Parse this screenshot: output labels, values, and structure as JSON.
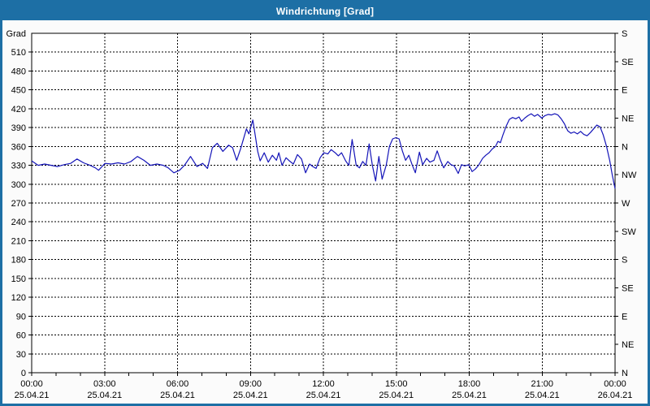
{
  "window": {
    "title": "Windrichtung [Grad]"
  },
  "colors": {
    "window_border": "#1d6fa5",
    "titlebar_bg": "#1d6fa5",
    "title_text": "#ffffff",
    "plot_bg": "#ffffff",
    "grid": "#000000",
    "line": "#1414b8"
  },
  "chart_data": {
    "type": "line",
    "title": "Windrichtung [Grad]",
    "y_left_unit": "Grad",
    "ylim": [
      0,
      540
    ],
    "y_left_tick_step": 30,
    "y_left_ticks": [
      0,
      30,
      60,
      90,
      120,
      150,
      180,
      210,
      240,
      270,
      300,
      330,
      360,
      390,
      420,
      450,
      480,
      510
    ],
    "y_right_ticks": [
      {
        "value": 0,
        "label": "N"
      },
      {
        "value": 45,
        "label": "NE"
      },
      {
        "value": 90,
        "label": "E"
      },
      {
        "value": 135,
        "label": "SE"
      },
      {
        "value": 180,
        "label": "S"
      },
      {
        "value": 225,
        "label": "SW"
      },
      {
        "value": 270,
        "label": "W"
      },
      {
        "value": 315,
        "label": "NW"
      },
      {
        "value": 360,
        "label": "N"
      },
      {
        "value": 405,
        "label": "NE"
      },
      {
        "value": 450,
        "label": "E"
      },
      {
        "value": 495,
        "label": "SE"
      },
      {
        "value": 540,
        "label": "S"
      }
    ],
    "xlim_minutes": [
      0,
      1440
    ],
    "x_major_step_minutes": 180,
    "x_minor_step_minutes": 60,
    "x_ticks": [
      {
        "minute": 0,
        "time": "00:00",
        "date": "25.04.21"
      },
      {
        "minute": 180,
        "time": "03:00",
        "date": "25.04.21"
      },
      {
        "minute": 360,
        "time": "06:00",
        "date": "25.04.21"
      },
      {
        "minute": 540,
        "time": "09:00",
        "date": "25.04.21"
      },
      {
        "minute": 720,
        "time": "12:00",
        "date": "25.04.21"
      },
      {
        "minute": 900,
        "time": "15:00",
        "date": "25.04.21"
      },
      {
        "minute": 1080,
        "time": "18:00",
        "date": "25.04.21"
      },
      {
        "minute": 1260,
        "time": "21:00",
        "date": "25.04.21"
      },
      {
        "minute": 1440,
        "time": "00:00",
        "date": "26.04.21"
      }
    ],
    "grid": true,
    "legend": "none",
    "series": [
      {
        "name": "Windrichtung",
        "color": "#1414b8",
        "points": [
          [
            0,
            337
          ],
          [
            16,
            330
          ],
          [
            32,
            332
          ],
          [
            48,
            330
          ],
          [
            64,
            328
          ],
          [
            80,
            331
          ],
          [
            96,
            333
          ],
          [
            112,
            340
          ],
          [
            128,
            334
          ],
          [
            144,
            330
          ],
          [
            157,
            326
          ],
          [
            165,
            322
          ],
          [
            181,
            333
          ],
          [
            197,
            332
          ],
          [
            213,
            334
          ],
          [
            229,
            332
          ],
          [
            245,
            336
          ],
          [
            261,
            344
          ],
          [
            277,
            338
          ],
          [
            293,
            330
          ],
          [
            309,
            332
          ],
          [
            325,
            330
          ],
          [
            337,
            326
          ],
          [
            351,
            318
          ],
          [
            365,
            322
          ],
          [
            377,
            330
          ],
          [
            392,
            344
          ],
          [
            408,
            328
          ],
          [
            422,
            333
          ],
          [
            434,
            325
          ],
          [
            446,
            358
          ],
          [
            458,
            365
          ],
          [
            472,
            352
          ],
          [
            486,
            362
          ],
          [
            496,
            358
          ],
          [
            506,
            338
          ],
          [
            516,
            357
          ],
          [
            530,
            388
          ],
          [
            536,
            380
          ],
          [
            546,
            402
          ],
          [
            558,
            352
          ],
          [
            564,
            337
          ],
          [
            574,
            350
          ],
          [
            584,
            335
          ],
          [
            594,
            346
          ],
          [
            604,
            338
          ],
          [
            610,
            350
          ],
          [
            618,
            330
          ],
          [
            628,
            342
          ],
          [
            636,
            337
          ],
          [
            646,
            332
          ],
          [
            656,
            347
          ],
          [
            666,
            340
          ],
          [
            676,
            318
          ],
          [
            686,
            332
          ],
          [
            694,
            328
          ],
          [
            702,
            325
          ],
          [
            712,
            342
          ],
          [
            721,
            350
          ],
          [
            731,
            348
          ],
          [
            739,
            355
          ],
          [
            749,
            350
          ],
          [
            757,
            345
          ],
          [
            765,
            350
          ],
          [
            775,
            337
          ],
          [
            783,
            330
          ],
          [
            791,
            371
          ],
          [
            801,
            330
          ],
          [
            809,
            326
          ],
          [
            817,
            336
          ],
          [
            825,
            330
          ],
          [
            833,
            364
          ],
          [
            841,
            330
          ],
          [
            849,
            305
          ],
          [
            857,
            344
          ],
          [
            865,
            308
          ],
          [
            875,
            330
          ],
          [
            883,
            360
          ],
          [
            891,
            372
          ],
          [
            899,
            374
          ],
          [
            907,
            372
          ],
          [
            915,
            353
          ],
          [
            923,
            338
          ],
          [
            931,
            346
          ],
          [
            939,
            331
          ],
          [
            947,
            318
          ],
          [
            957,
            351
          ],
          [
            965,
            331
          ],
          [
            975,
            341
          ],
          [
            983,
            335
          ],
          [
            993,
            338
          ],
          [
            1001,
            353
          ],
          [
            1009,
            338
          ],
          [
            1017,
            326
          ],
          [
            1027,
            336
          ],
          [
            1035,
            331
          ],
          [
            1043,
            329
          ],
          [
            1053,
            317
          ],
          [
            1061,
            331
          ],
          [
            1069,
            329
          ],
          [
            1079,
            331
          ],
          [
            1087,
            320
          ],
          [
            1095,
            324
          ],
          [
            1103,
            330
          ],
          [
            1113,
            341
          ],
          [
            1121,
            346
          ],
          [
            1129,
            350
          ],
          [
            1137,
            356
          ],
          [
            1145,
            360
          ],
          [
            1151,
            368
          ],
          [
            1157,
            366
          ],
          [
            1163,
            378
          ],
          [
            1171,
            392
          ],
          [
            1179,
            403
          ],
          [
            1187,
            406
          ],
          [
            1195,
            404
          ],
          [
            1203,
            407
          ],
          [
            1209,
            400
          ],
          [
            1217,
            405
          ],
          [
            1225,
            409
          ],
          [
            1233,
            412
          ],
          [
            1241,
            408
          ],
          [
            1249,
            411
          ],
          [
            1259,
            405
          ],
          [
            1267,
            409
          ],
          [
            1275,
            411
          ],
          [
            1283,
            410
          ],
          [
            1291,
            412
          ],
          [
            1299,
            410
          ],
          [
            1307,
            404
          ],
          [
            1315,
            396
          ],
          [
            1323,
            385
          ],
          [
            1331,
            381
          ],
          [
            1339,
            383
          ],
          [
            1347,
            380
          ],
          [
            1355,
            384
          ],
          [
            1363,
            379
          ],
          [
            1371,
            377
          ],
          [
            1379,
            382
          ],
          [
            1387,
            388
          ],
          [
            1395,
            394
          ],
          [
            1403,
            391
          ],
          [
            1411,
            378
          ],
          [
            1419,
            360
          ],
          [
            1427,
            337
          ],
          [
            1433,
            315
          ],
          [
            1440,
            293
          ]
        ]
      }
    ]
  }
}
